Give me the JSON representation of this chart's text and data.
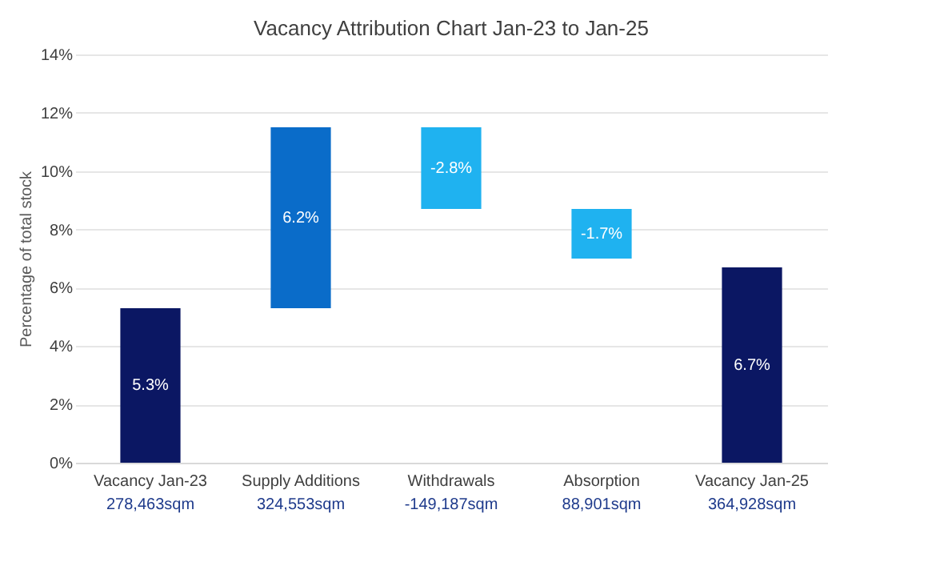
{
  "chart_data": {
    "type": "bar",
    "title": "Vacancy Attribution Chart Jan-23 to Jan-25",
    "ylabel": "Percentage of total stock",
    "categories": [
      "Vacancy Jan-23",
      "Supply Additions",
      "Withdrawals",
      "Absorption",
      "Vacancy Jan-25"
    ],
    "values": [
      5.3,
      6.2,
      -2.8,
      -1.7,
      6.7
    ],
    "base": [
      0,
      5.3,
      11.5,
      8.7,
      0
    ],
    "colors": [
      "#0b1763",
      "#0a6cc9",
      "#1fb2f0",
      "#1fb2f0",
      "#0b1763"
    ],
    "value_labels": [
      "5.3%",
      "6.2%",
      "-2.8%",
      "-1.7%",
      "6.7%"
    ],
    "ylim": [
      0,
      14
    ],
    "yticks": [
      {
        "value": 0,
        "label": "0%"
      },
      {
        "value": 2,
        "label": "2%"
      },
      {
        "value": 4,
        "label": "4%"
      },
      {
        "value": 6,
        "label": "6%"
      },
      {
        "value": 8,
        "label": "8%"
      },
      {
        "value": 10,
        "label": "10%"
      },
      {
        "value": 12,
        "label": "12%"
      },
      {
        "value": 14,
        "label": "14%"
      }
    ],
    "grid": "y",
    "annotations": [
      "278,463sqm",
      "324,553sqm",
      "-149,187sqm",
      "88,901sqm",
      "364,928sqm"
    ]
  }
}
